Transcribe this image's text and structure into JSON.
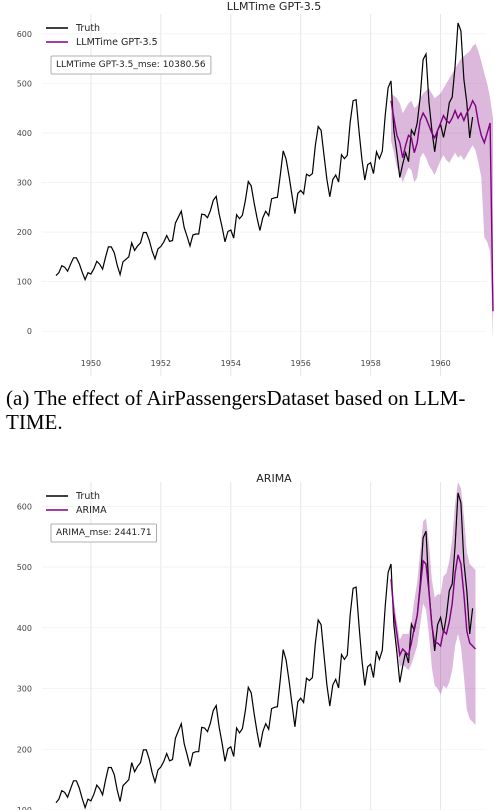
{
  "chart_data": [
    {
      "type": "line",
      "title": "LLMTime GPT-3.5",
      "xlabel": "",
      "ylabel": "",
      "xlim": [
        1948.6,
        1961.3
      ],
      "ylim": [
        -30,
        640
      ],
      "x_ticks": [
        "1950",
        "1952",
        "1954",
        "1956",
        "1958",
        "1960"
      ],
      "y_ticks": [
        "0",
        "100",
        "200",
        "300",
        "400",
        "500",
        "600"
      ],
      "grid": true,
      "legend": "top-left",
      "annotation": "LLMTime GPT-3.5_mse: 10380.56",
      "series": [
        {
          "name": "Truth",
          "color": "#000000",
          "start": "1949-01",
          "freq": "monthly",
          "values": [
            112,
            118,
            132,
            129,
            121,
            135,
            148,
            148,
            136,
            119,
            104,
            118,
            115,
            126,
            141,
            135,
            125,
            149,
            170,
            170,
            158,
            133,
            114,
            140,
            145,
            150,
            178,
            163,
            172,
            178,
            199,
            199,
            184,
            162,
            146,
            166,
            171,
            180,
            193,
            181,
            183,
            218,
            230,
            242,
            209,
            191,
            172,
            194,
            196,
            196,
            236,
            235,
            229,
            243,
            264,
            272,
            237,
            211,
            180,
            201,
            204,
            188,
            235,
            227,
            234,
            264,
            302,
            293,
            259,
            229,
            203,
            229,
            242,
            233,
            267,
            269,
            270,
            315,
            364,
            347,
            312,
            274,
            237,
            278,
            284,
            277,
            317,
            313,
            318,
            374,
            413,
            405,
            355,
            306,
            271,
            306,
            315,
            301,
            356,
            348,
            355,
            422,
            465,
            467,
            404,
            347,
            305,
            336,
            340,
            318,
            362,
            348,
            363,
            435,
            491,
            505,
            404,
            359,
            310,
            337,
            360,
            342,
            406,
            396,
            420,
            472,
            548,
            559,
            463,
            407,
            362,
            405,
            417,
            391,
            419,
            461,
            472,
            535,
            622,
            606,
            508,
            461,
            390,
            432
          ]
        },
        {
          "name": "LLMTime GPT-3.5",
          "color": "#800080",
          "start": "1958-08",
          "values": [
            465,
            430,
            395,
            380,
            350,
            375,
            395,
            390,
            360,
            380,
            425,
            440,
            430,
            415,
            400,
            390,
            405,
            420,
            435,
            425,
            420,
            430,
            445,
            430,
            440,
            425,
            440,
            450,
            465,
            455,
            420,
            395,
            380,
            400,
            420,
            40
          ],
          "lower": [
            385,
            360,
            330,
            320,
            300,
            315,
            330,
            325,
            300,
            310,
            350,
            360,
            350,
            335,
            325,
            315,
            330,
            345,
            355,
            345,
            340,
            350,
            360,
            350,
            355,
            345,
            355,
            365,
            375,
            365,
            340,
            310,
            190,
            180,
            160,
            -15
          ],
          "upper": [
            480,
            475,
            470,
            460,
            440,
            450,
            460,
            465,
            450,
            455,
            470,
            480,
            485,
            490,
            480,
            470,
            475,
            480,
            490,
            500,
            510,
            520,
            530,
            540,
            550,
            555,
            560,
            565,
            575,
            580,
            565,
            545,
            520,
            500,
            470,
            430
          ]
        }
      ]
    },
    {
      "type": "line",
      "title": "ARIMA",
      "xlabel": "",
      "ylabel": "",
      "xlim": [
        1948.6,
        1961.3
      ],
      "ylim": [
        100,
        640
      ],
      "y_ticks": [
        "100",
        "200",
        "300",
        "400",
        "500",
        "600"
      ],
      "grid": true,
      "legend": "top-left",
      "annotation": "ARIMA_mse: 2441.71",
      "series": [
        {
          "name": "Truth",
          "color": "#000000",
          "start": "1949-01",
          "freq": "monthly",
          "values": [
            112,
            118,
            132,
            129,
            121,
            135,
            148,
            148,
            136,
            119,
            104,
            118,
            115,
            126,
            141,
            135,
            125,
            149,
            170,
            170,
            158,
            133,
            114,
            140,
            145,
            150,
            178,
            163,
            172,
            178,
            199,
            199,
            184,
            162,
            146,
            166,
            171,
            180,
            193,
            181,
            183,
            218,
            230,
            242,
            209,
            191,
            172,
            194,
            196,
            196,
            236,
            235,
            229,
            243,
            264,
            272,
            237,
            211,
            180,
            201,
            204,
            188,
            235,
            227,
            234,
            264,
            302,
            293,
            259,
            229,
            203,
            229,
            242,
            233,
            267,
            269,
            270,
            315,
            364,
            347,
            312,
            274,
            237,
            278,
            284,
            277,
            317,
            313,
            318,
            374,
            413,
            405,
            355,
            306,
            271,
            306,
            315,
            301,
            356,
            348,
            355,
            422,
            465,
            467,
            404,
            347,
            305,
            336,
            340,
            318,
            362,
            348,
            363,
            435,
            491,
            505,
            404,
            359,
            310,
            337,
            360,
            342,
            406,
            396,
            420,
            472,
            548,
            559,
            463,
            407,
            362,
            405,
            417,
            391,
            419,
            461,
            472,
            535,
            622,
            606,
            508,
            461,
            390,
            432
          ]
        },
        {
          "name": "ARIMA",
          "color": "#800080",
          "start": "1958-08",
          "values": [
            480,
            425,
            390,
            355,
            365,
            360,
            355,
            375,
            400,
            420,
            465,
            510,
            505,
            460,
            405,
            375,
            375,
            370,
            395,
            390,
            410,
            440,
            490,
            520,
            505,
            455,
            395,
            375,
            370,
            365
          ],
          "lower": [
            470,
            410,
            370,
            335,
            340,
            335,
            330,
            340,
            355,
            370,
            405,
            440,
            430,
            390,
            335,
            305,
            300,
            290,
            305,
            300,
            310,
            330,
            370,
            390,
            370,
            320,
            265,
            250,
            245,
            240
          ],
          "upper": [
            495,
            445,
            410,
            380,
            390,
            390,
            390,
            410,
            445,
            475,
            525,
            575,
            580,
            540,
            480,
            450,
            455,
            455,
            485,
            490,
            510,
            545,
            605,
            640,
            630,
            585,
            525,
            505,
            500,
            495
          ]
        }
      ]
    }
  ],
  "caption": "(a) The effect of AirPassengersDataset based on LLM-TIME."
}
